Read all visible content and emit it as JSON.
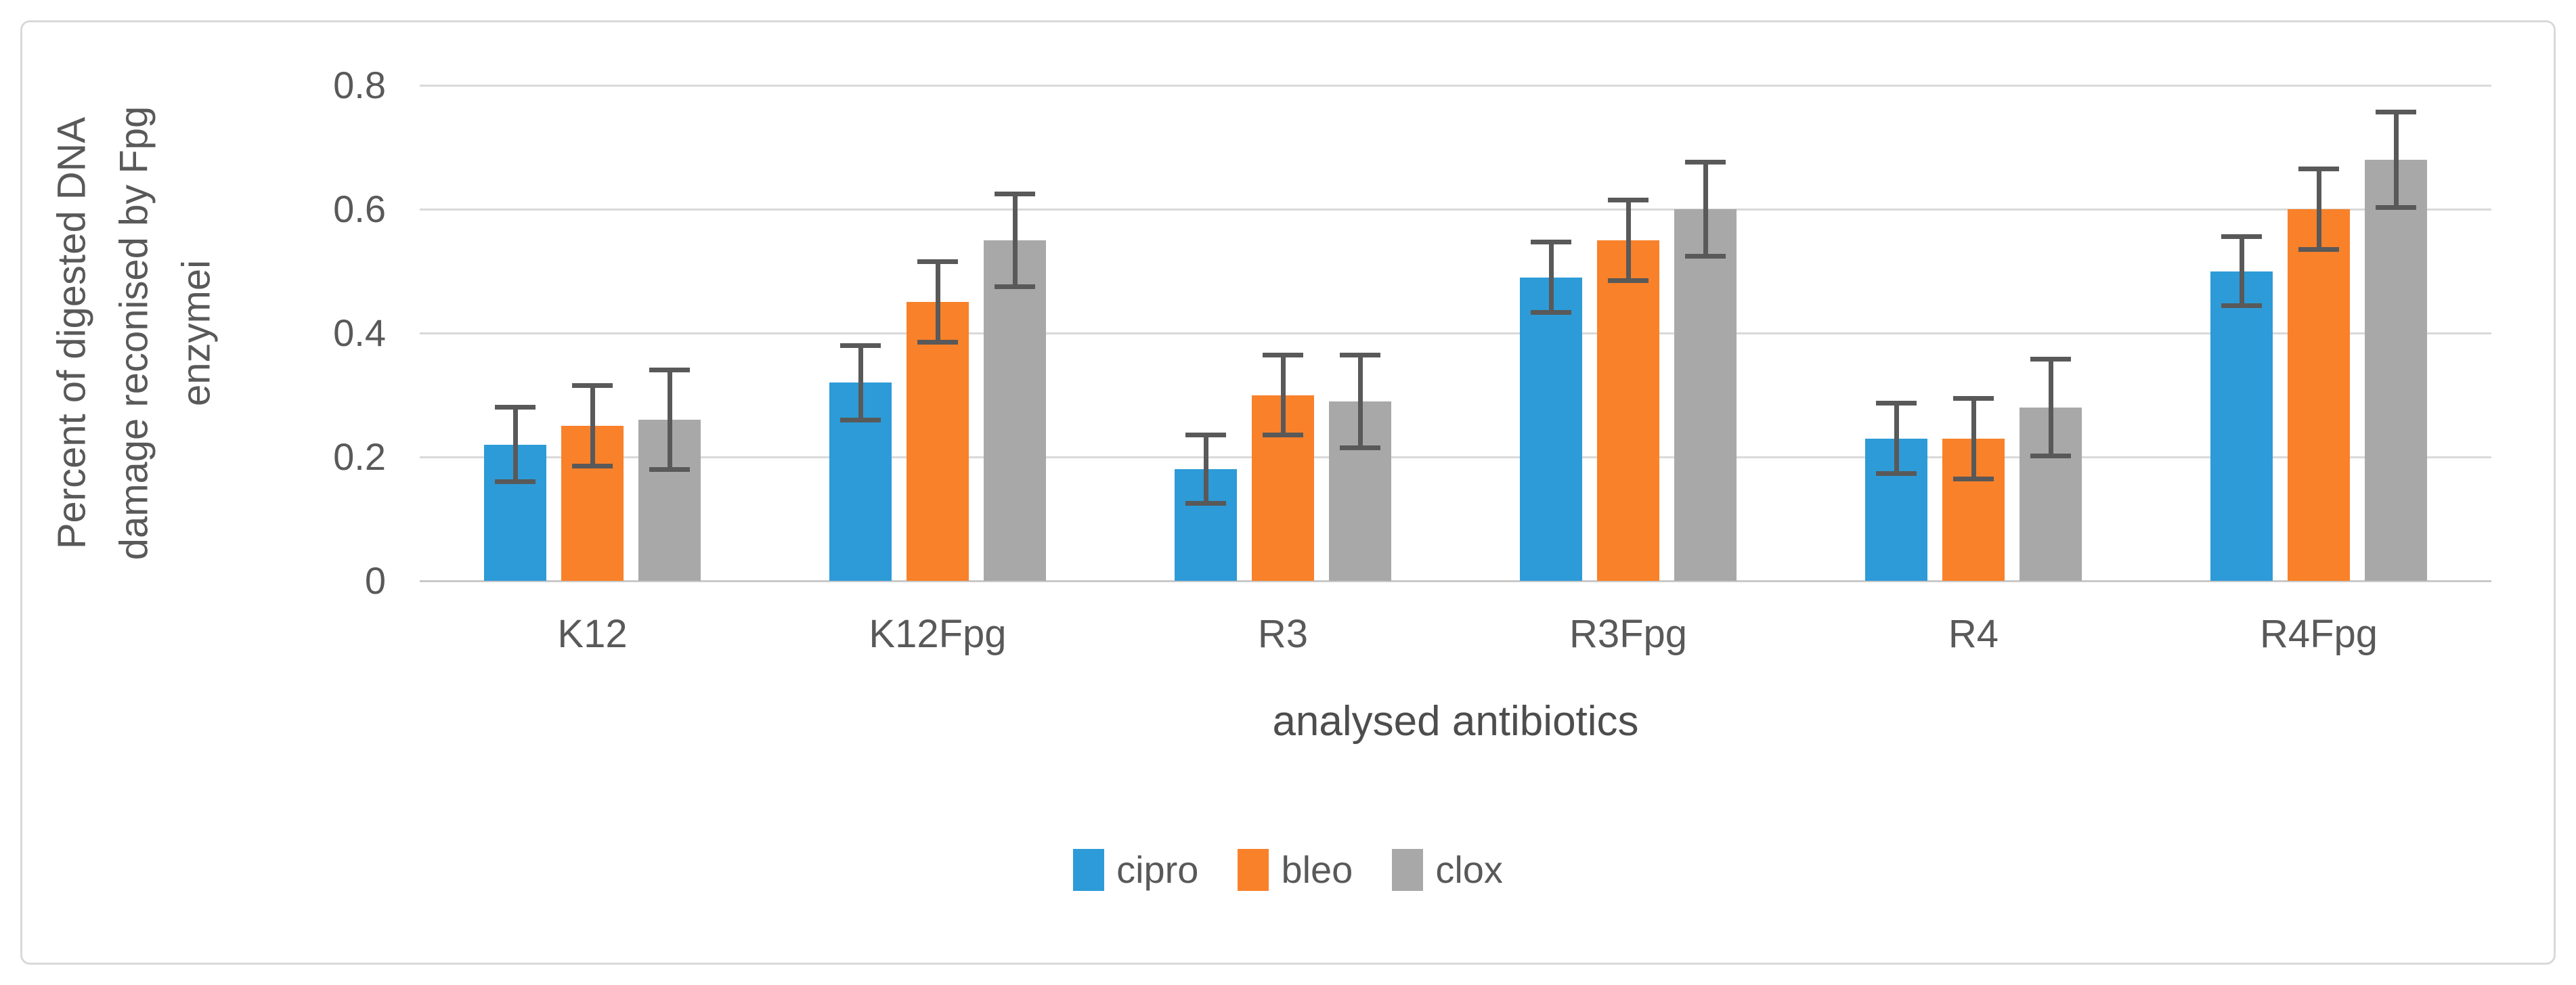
{
  "figure": {
    "background_color": "#FFFFFF",
    "border_color": "#D9D9D9"
  },
  "chart_data": {
    "type": "bar",
    "title": "",
    "xlabel": "analysed antibiotics",
    "ylabel": "Percent of digested DNA damage reconised by Fpg enzymei",
    "ylabel_lines": [
      "Percent of digested DNA",
      "damage reconised by Fpg",
      "enzymei"
    ],
    "categories": [
      "K12",
      "K12Fpg",
      "R3",
      "R3Fpg",
      "R4",
      "R4Fpg"
    ],
    "series": [
      {
        "name": "cipro",
        "color": "#2D9BD7",
        "values": [
          0.22,
          0.32,
          0.18,
          0.49,
          0.23,
          0.5
        ],
        "errors": [
          0.06,
          0.06,
          0.055,
          0.057,
          0.057,
          0.056
        ]
      },
      {
        "name": "bleo",
        "color": "#F8812A",
        "values": [
          0.25,
          0.45,
          0.3,
          0.55,
          0.23,
          0.6
        ],
        "errors": [
          0.065,
          0.065,
          0.065,
          0.065,
          0.065,
          0.065
        ]
      },
      {
        "name": "clox",
        "color": "#A8A8A8",
        "values": [
          0.26,
          0.55,
          0.29,
          0.6,
          0.28,
          0.68
        ],
        "errors": [
          0.08,
          0.075,
          0.075,
          0.076,
          0.078,
          0.077
        ]
      }
    ],
    "y_tick_values": [
      0,
      0.2,
      0.4,
      0.6,
      0.8
    ],
    "y_tick_labels": [
      "0",
      "0.2",
      "0.4",
      "0.6",
      "0.8"
    ],
    "ylim": [
      0,
      0.8
    ],
    "grid": true,
    "legend_position": "bottom",
    "legend_labels": [
      "cipro",
      "bleo",
      "clox"
    ],
    "error_bars": true,
    "error_bar_color": "#595959",
    "gridline_color": "#D9D9D9",
    "text_color": "#595959"
  }
}
